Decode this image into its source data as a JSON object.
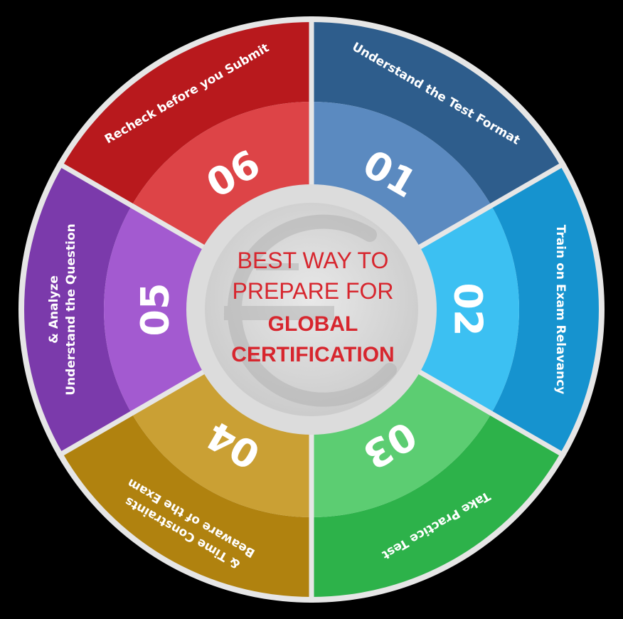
{
  "center": {
    "lines": [
      {
        "text": "BEST WAY TO",
        "style": "light"
      },
      {
        "text": "PREPARE FOR",
        "style": "light"
      },
      {
        "text": "GLOBAL",
        "style": "bold"
      },
      {
        "text": "CERTIFICATION",
        "style": "bold"
      }
    ],
    "text_color": "#d7262e",
    "logo_mark": "e-letter-watermark"
  },
  "segments": [
    {
      "number": "01",
      "lines": [
        "Understand the Test Format"
      ],
      "outer_color": "#2e5d8c",
      "inner_color": "#5b8ac0"
    },
    {
      "number": "02",
      "lines": [
        "Train on Exam Relavancy"
      ],
      "outer_color": "#1693cf",
      "inner_color": "#3cc0f2"
    },
    {
      "number": "03",
      "lines": [
        "Take Practice Test"
      ],
      "outer_color": "#2db24a",
      "inner_color": "#5ccd72"
    },
    {
      "number": "04",
      "lines": [
        "Beaware of the Exam",
        "& Time Constraints"
      ],
      "outer_color": "#b0820f",
      "inner_color": "#caa034"
    },
    {
      "number": "05",
      "lines": [
        "Understand the Question",
        "& Analyze"
      ],
      "outer_color": "#7b3aab",
      "inner_color": "#a35ad0"
    },
    {
      "number": "06",
      "lines": [
        "Recheck before you Submit"
      ],
      "outer_color": "#b8191d",
      "inner_color": "#dd4447"
    }
  ]
}
